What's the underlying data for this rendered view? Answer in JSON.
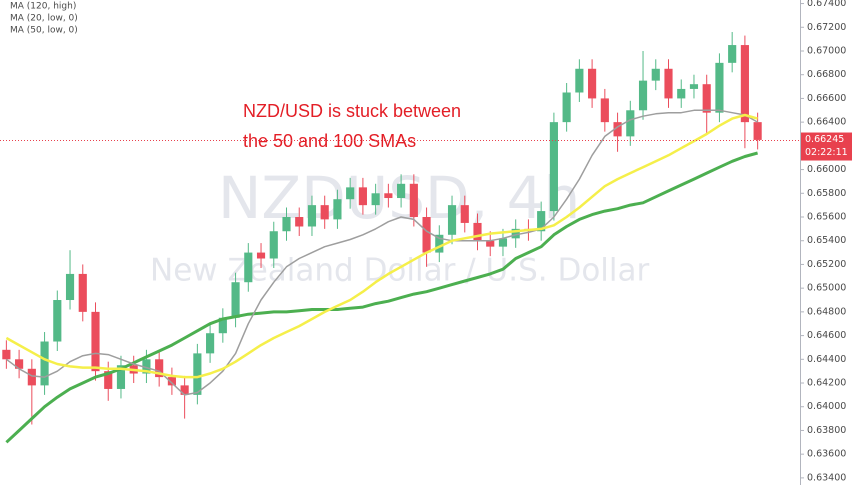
{
  "chart_data": {
    "type": "candlestick",
    "title": "NZDUSD, 4h",
    "watermark": "NZDUSD, 4h",
    "subtitle": "New Zealand Dollar / U.S. Dollar",
    "annotation": [
      "NZD/USD is stuck between",
      "the 50 and 100 SMAs"
    ],
    "ylim": [
      0.6334,
      0.6743
    ],
    "yticks": [
      {
        "value": 0.634,
        "label": "0.63400"
      },
      {
        "value": 0.636,
        "label": "0.63600"
      },
      {
        "value": 0.638,
        "label": "0.63800"
      },
      {
        "value": 0.64,
        "label": "0.64000"
      },
      {
        "value": 0.642,
        "label": "0.64200"
      },
      {
        "value": 0.644,
        "label": "0.64400"
      },
      {
        "value": 0.646,
        "label": "0.64600"
      },
      {
        "value": 0.648,
        "label": "0.64800"
      },
      {
        "value": 0.65,
        "label": "0.65000"
      },
      {
        "value": 0.652,
        "label": "0.65200"
      },
      {
        "value": 0.654,
        "label": "0.65400"
      },
      {
        "value": 0.656,
        "label": "0.65600"
      },
      {
        "value": 0.658,
        "label": "0.65800"
      },
      {
        "value": 0.66,
        "label": "0.66000"
      },
      {
        "value": 0.662,
        "label": "0.66200"
      },
      {
        "value": 0.664,
        "label": "0.66400"
      },
      {
        "value": 0.666,
        "label": "0.66600"
      },
      {
        "value": 0.668,
        "label": "0.66800"
      },
      {
        "value": 0.67,
        "label": "0.67000"
      },
      {
        "value": 0.672,
        "label": "0.67200"
      },
      {
        "value": 0.674,
        "label": "0.67400"
      }
    ],
    "last_price": 0.66245,
    "last_price_color": "#e8414e",
    "countdown": "02:22:11",
    "up_color": "#53b987",
    "down_color": "#eb4d5c",
    "candles": {
      "open": [
        0.6448,
        0.644,
        0.6432,
        0.6418,
        0.6455,
        0.649,
        0.6512,
        0.648,
        0.643,
        0.6415,
        0.6435,
        0.6428,
        0.644,
        0.6425,
        0.6418,
        0.641,
        0.6445,
        0.6462,
        0.6475,
        0.6505,
        0.653,
        0.6525,
        0.6548,
        0.656,
        0.6552,
        0.657,
        0.6558,
        0.6575,
        0.6585,
        0.657,
        0.658,
        0.6576,
        0.6588,
        0.656,
        0.653,
        0.6545,
        0.657,
        0.6555,
        0.654,
        0.6535,
        0.6542,
        0.655,
        0.6548,
        0.6565,
        0.664,
        0.6665,
        0.6685,
        0.666,
        0.664,
        0.6628,
        0.665,
        0.6675,
        0.6685,
        0.666,
        0.6668,
        0.6672,
        0.6648,
        0.669,
        0.6705,
        0.664
      ],
      "high": [
        0.6456,
        0.6448,
        0.644,
        0.6463,
        0.6498,
        0.6532,
        0.652,
        0.6488,
        0.6438,
        0.6443,
        0.6443,
        0.6448,
        0.6448,
        0.6433,
        0.6426,
        0.6453,
        0.647,
        0.6483,
        0.6513,
        0.6538,
        0.6538,
        0.6556,
        0.6568,
        0.6568,
        0.6578,
        0.6578,
        0.6583,
        0.6593,
        0.6593,
        0.6588,
        0.6588,
        0.6596,
        0.6596,
        0.6568,
        0.6553,
        0.6578,
        0.6578,
        0.6563,
        0.6548,
        0.655,
        0.6558,
        0.6558,
        0.6573,
        0.6648,
        0.6673,
        0.6693,
        0.6693,
        0.6668,
        0.6648,
        0.6658,
        0.67,
        0.6693,
        0.6693,
        0.6676,
        0.668,
        0.668,
        0.6698,
        0.6716,
        0.6713,
        0.6648
      ],
      "low": [
        0.6432,
        0.6424,
        0.6385,
        0.641,
        0.6447,
        0.6482,
        0.6472,
        0.6422,
        0.6405,
        0.6407,
        0.642,
        0.642,
        0.6417,
        0.641,
        0.639,
        0.6402,
        0.6437,
        0.6454,
        0.6467,
        0.6497,
        0.6517,
        0.6517,
        0.654,
        0.6544,
        0.6544,
        0.655,
        0.655,
        0.6567,
        0.6562,
        0.6562,
        0.6568,
        0.6568,
        0.6552,
        0.6518,
        0.6522,
        0.6537,
        0.6547,
        0.6532,
        0.6527,
        0.6527,
        0.6534,
        0.654,
        0.654,
        0.6557,
        0.6632,
        0.6657,
        0.6652,
        0.6632,
        0.6615,
        0.662,
        0.6642,
        0.6667,
        0.6652,
        0.6652,
        0.666,
        0.663,
        0.664,
        0.6682,
        0.6618,
        0.6617
      ],
      "close": [
        0.644,
        0.6432,
        0.6418,
        0.6455,
        0.649,
        0.6512,
        0.648,
        0.643,
        0.6415,
        0.6435,
        0.6428,
        0.644,
        0.6425,
        0.6418,
        0.641,
        0.6445,
        0.6462,
        0.6475,
        0.6505,
        0.653,
        0.6525,
        0.6548,
        0.656,
        0.6552,
        0.657,
        0.6558,
        0.6575,
        0.6585,
        0.657,
        0.658,
        0.6576,
        0.6588,
        0.656,
        0.653,
        0.6545,
        0.657,
        0.6555,
        0.654,
        0.6535,
        0.6542,
        0.655,
        0.6548,
        0.6565,
        0.664,
        0.6665,
        0.6685,
        0.666,
        0.664,
        0.6628,
        0.665,
        0.6675,
        0.6685,
        0.666,
        0.6668,
        0.6672,
        0.6648,
        0.669,
        0.6705,
        0.664,
        0.6625
      ]
    },
    "series": [
      {
        "name": "MA (120, high)",
        "color": "#4caf50",
        "width": 3,
        "values": [
          0.637,
          0.638,
          0.639,
          0.64,
          0.6408,
          0.6415,
          0.642,
          0.6425,
          0.6428,
          0.6432,
          0.6437,
          0.6442,
          0.6447,
          0.6452,
          0.6458,
          0.6464,
          0.647,
          0.6474,
          0.6476,
          0.6478,
          0.6479,
          0.648,
          0.648,
          0.6481,
          0.6482,
          0.6482,
          0.6482,
          0.6483,
          0.6484,
          0.6487,
          0.6489,
          0.6492,
          0.6495,
          0.6497,
          0.65,
          0.6503,
          0.6506,
          0.6509,
          0.6512,
          0.6516,
          0.6525,
          0.653,
          0.6535,
          0.6545,
          0.6552,
          0.6558,
          0.6562,
          0.6565,
          0.6567,
          0.657,
          0.6572,
          0.6577,
          0.6582,
          0.6587,
          0.6592,
          0.6597,
          0.6602,
          0.6607,
          0.6611,
          0.6614
        ]
      },
      {
        "name": "MA (20, low, 0)",
        "color": "#9e9e9e",
        "width": 1.5,
        "values": [
          0.644,
          0.6432,
          0.6426,
          0.6425,
          0.643,
          0.6438,
          0.6443,
          0.6445,
          0.6444,
          0.644,
          0.6436,
          0.6433,
          0.643,
          0.642,
          0.641,
          0.6412,
          0.642,
          0.643,
          0.6445,
          0.647,
          0.649,
          0.6505,
          0.6518,
          0.6525,
          0.653,
          0.6535,
          0.6538,
          0.6541,
          0.6545,
          0.655,
          0.6556,
          0.656,
          0.6558,
          0.6548,
          0.6542,
          0.654,
          0.654,
          0.654,
          0.654,
          0.6542,
          0.6545,
          0.6547,
          0.655,
          0.656,
          0.6575,
          0.6592,
          0.6612,
          0.6628,
          0.6636,
          0.6642,
          0.6645,
          0.6647,
          0.6648,
          0.6648,
          0.665,
          0.665,
          0.665,
          0.6648,
          0.6646,
          0.664
        ]
      },
      {
        "name": "MA (50, low, 0)",
        "color": "#f5ef4a",
        "width": 2.5,
        "values": [
          0.6458,
          0.6452,
          0.6446,
          0.644,
          0.6436,
          0.6434,
          0.6433,
          0.6433,
          0.6432,
          0.6432,
          0.6431,
          0.643,
          0.6428,
          0.6426,
          0.6425,
          0.6425,
          0.6428,
          0.6432,
          0.6438,
          0.6445,
          0.6452,
          0.6458,
          0.6463,
          0.6468,
          0.6474,
          0.648,
          0.6485,
          0.649,
          0.6497,
          0.6505,
          0.6512,
          0.6518,
          0.6524,
          0.653,
          0.6535,
          0.654,
          0.6542,
          0.6544,
          0.6546,
          0.6547,
          0.6548,
          0.6549,
          0.655,
          0.6553,
          0.656,
          0.6568,
          0.6577,
          0.6586,
          0.6592,
          0.6597,
          0.6602,
          0.6607,
          0.6612,
          0.6618,
          0.6624,
          0.663,
          0.6637,
          0.6643,
          0.6646,
          0.6643
        ]
      }
    ]
  }
}
